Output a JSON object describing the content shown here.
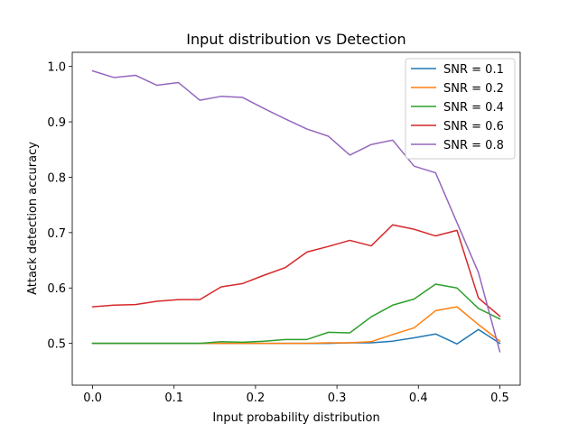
{
  "chart_data": {
    "type": "line",
    "title": "Input distribution vs Detection",
    "xlabel": "Input probability distribution",
    "ylabel": "Attack detection accuracy",
    "xlim": [
      -0.025,
      0.525
    ],
    "ylim": [
      0.4245,
      1.0255
    ],
    "xticks": [
      0.0,
      0.1,
      0.2,
      0.3,
      0.4,
      0.5
    ],
    "xtick_labels": [
      "0.0",
      "0.1",
      "0.2",
      "0.3",
      "0.4",
      "0.5"
    ],
    "yticks": [
      0.5,
      0.6,
      0.7,
      0.8,
      0.9,
      1.0
    ],
    "ytick_labels": [
      "0.5",
      "0.6",
      "0.7",
      "0.8",
      "0.9",
      "1.0"
    ],
    "grid": false,
    "legend_position": "top-right",
    "x": [
      0.0,
      0.0263,
      0.0526,
      0.0789,
      0.1053,
      0.1316,
      0.1579,
      0.1842,
      0.2105,
      0.2368,
      0.2632,
      0.2895,
      0.3158,
      0.3421,
      0.3684,
      0.3947,
      0.4211,
      0.4474,
      0.4737,
      0.5
    ],
    "series": [
      {
        "name": "SNR = 0.1",
        "color": "#1f77b4",
        "values": [
          0.5,
          0.5,
          0.5,
          0.5,
          0.5,
          0.5,
          0.5,
          0.5,
          0.5,
          0.5,
          0.5,
          0.5,
          0.501,
          0.501,
          0.504,
          0.51,
          0.517,
          0.499,
          0.525,
          0.5
        ]
      },
      {
        "name": "SNR = 0.2",
        "color": "#ff7f0e",
        "values": [
          0.5,
          0.5,
          0.5,
          0.5,
          0.5,
          0.5,
          0.5,
          0.5,
          0.5,
          0.5,
          0.5,
          0.501,
          0.501,
          0.503,
          0.516,
          0.528,
          0.559,
          0.566,
          0.534,
          0.504
        ]
      },
      {
        "name": "SNR = 0.4",
        "color": "#2ca02c",
        "values": [
          0.5,
          0.5,
          0.5,
          0.5,
          0.5,
          0.5,
          0.503,
          0.502,
          0.504,
          0.507,
          0.507,
          0.52,
          0.519,
          0.548,
          0.569,
          0.58,
          0.607,
          0.6,
          0.563,
          0.544
        ]
      },
      {
        "name": "SNR = 0.6",
        "color": "#d62728",
        "values": [
          0.566,
          0.569,
          0.57,
          0.576,
          0.579,
          0.579,
          0.602,
          0.608,
          0.623,
          0.637,
          0.665,
          0.675,
          0.686,
          0.676,
          0.714,
          0.706,
          0.694,
          0.704,
          0.582,
          0.549
        ]
      },
      {
        "name": "SNR = 0.8",
        "color": "#9467bd",
        "values": [
          0.992,
          0.98,
          0.984,
          0.966,
          0.971,
          0.939,
          0.946,
          0.944,
          0.924,
          0.905,
          0.887,
          0.874,
          0.84,
          0.859,
          0.867,
          0.82,
          0.808,
          0.718,
          0.628,
          0.485
        ]
      }
    ]
  }
}
